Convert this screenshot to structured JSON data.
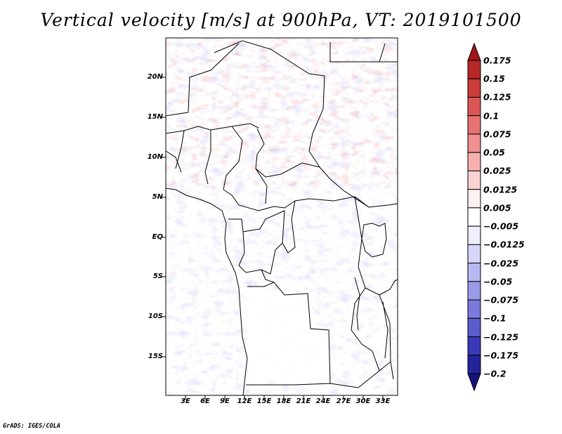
{
  "title": "Vertical velocity [m/s] at 900hPa, VT: 2019101500",
  "map": {
    "lat_labels": [
      "20N",
      "15N",
      "10N",
      "5N",
      "EQ",
      "5S",
      "10S",
      "15S"
    ],
    "lon_labels": [
      "3E",
      "6E",
      "9E",
      "12E",
      "15E",
      "18E",
      "21E",
      "24E",
      "27E",
      "30E",
      "33E"
    ]
  },
  "colorbar": {
    "levels": [
      "0.175",
      "0.15",
      "0.125",
      "0.1",
      "0.075",
      "0.05",
      "0.025",
      "0.0125",
      "0.005",
      "−0.005",
      "−0.0125",
      "−0.025",
      "−0.05",
      "−0.075",
      "−0.1",
      "−0.125",
      "−0.175",
      "−0.2"
    ],
    "colors": [
      "#a01818",
      "#b82828",
      "#cc3c3c",
      "#dc5656",
      "#e87272",
      "#f09090",
      "#f6b0b0",
      "#fad2d2",
      "#fdf0f0",
      "#ffffff",
      "#eeeeff",
      "#d6d6fa",
      "#b8b8f2",
      "#9a9ae8",
      "#7a7adc",
      "#5c5cce",
      "#3a3ab8",
      "#24249a",
      "#141480"
    ]
  },
  "credit": "GrADS: IGES/COLA"
}
